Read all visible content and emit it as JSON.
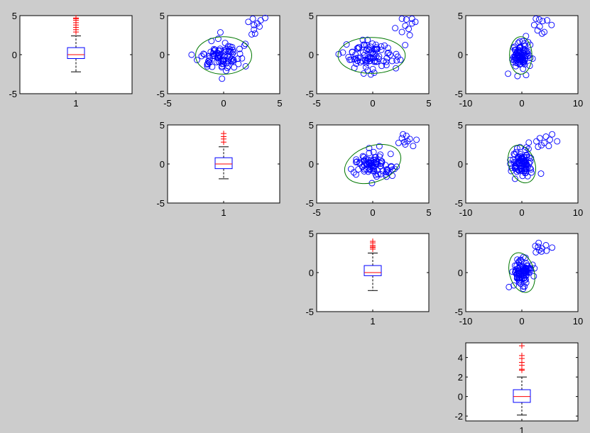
{
  "figure": {
    "background": "#cccccc",
    "axes_background": "#ffffff",
    "colors": {
      "box": "#0000ff",
      "median": "#ff0000",
      "whisker": "#000000",
      "outlier": "#ff0000",
      "point": "#0000ff",
      "ellipse": "#007700"
    }
  },
  "chart_data": [
    {
      "id": "box-1",
      "type": "box",
      "row": 1,
      "col": 1,
      "ylim": [
        -5,
        5
      ],
      "yticks": [
        "5",
        "0",
        "-5"
      ],
      "xticks": [
        "1"
      ],
      "box": {
        "q1": -0.5,
        "median": 0,
        "q3": 0.9,
        "whisker_low": -2.2,
        "whisker_high": 2.4
      },
      "outliers": [
        2.9,
        3.2,
        3.5,
        3.8,
        4.1,
        4.4,
        4.6,
        4.7
      ]
    },
    {
      "id": "scatter-1-2",
      "type": "scatter",
      "row": 1,
      "col": 2,
      "xlim": [
        -5,
        5
      ],
      "ylim": [
        -5,
        5
      ],
      "xticks": [
        "-5",
        "0",
        "5"
      ],
      "yticks": [
        "5",
        "0",
        "-5"
      ],
      "ellipse": {
        "cx": 0,
        "cy": -0.1,
        "rx": 2.5,
        "ry": 2.4,
        "angle_deg": 0
      },
      "outlier_points": [
        [
          2.2,
          4.2
        ],
        [
          2.6,
          4.6
        ],
        [
          2.7,
          3.8
        ],
        [
          3.0,
          4.0
        ],
        [
          2.7,
          3.2
        ],
        [
          2.5,
          2.6
        ],
        [
          2.8,
          2.7
        ],
        [
          3.3,
          4.4
        ],
        [
          3.7,
          4.7
        ],
        [
          3.2,
          3.6
        ]
      ]
    },
    {
      "id": "scatter-1-3",
      "type": "scatter",
      "row": 1,
      "col": 3,
      "xlim": [
        -5,
        5
      ],
      "ylim": [
        -5,
        5
      ],
      "xticks": [
        "-5",
        "0",
        "5"
      ],
      "yticks": [
        "5",
        "0",
        "-5"
      ],
      "ellipse": {
        "cx": -0.1,
        "cy": -0.1,
        "rx": 3.0,
        "ry": 2.3,
        "angle_deg": 0
      },
      "outlier_points": [
        [
          2.6,
          4.6
        ],
        [
          3.0,
          4.5
        ],
        [
          3.5,
          4.6
        ],
        [
          3.8,
          4.2
        ],
        [
          2.9,
          3.7
        ],
        [
          3.2,
          3.3
        ],
        [
          2.0,
          3.4
        ],
        [
          2.6,
          2.9
        ],
        [
          3.3,
          2.5
        ],
        [
          3.5,
          4.0
        ]
      ]
    },
    {
      "id": "scatter-1-4",
      "type": "scatter",
      "row": 1,
      "col": 4,
      "xlim": [
        -10,
        10
      ],
      "ylim": [
        -5,
        5
      ],
      "xticks": [
        "-10",
        "0",
        "10"
      ],
      "yticks": [
        "5",
        "0",
        "-5"
      ],
      "ellipse": {
        "cx": -0.2,
        "cy": -0.1,
        "rx": 2.0,
        "ry": 2.4,
        "angle_deg": 0
      },
      "outlier_points": [
        [
          2.5,
          4.6
        ],
        [
          3.7,
          4.3
        ],
        [
          4.5,
          4.4
        ],
        [
          2.2,
          3.8
        ],
        [
          3.2,
          3.6
        ],
        [
          5.3,
          3.8
        ],
        [
          2.8,
          3.1
        ],
        [
          4.0,
          2.9
        ],
        [
          3.6,
          2.7
        ],
        [
          3.1,
          4.5
        ]
      ]
    },
    {
      "id": "box-2",
      "type": "box",
      "row": 2,
      "col": 2,
      "ylim": [
        -5,
        5
      ],
      "yticks": [
        "5",
        "0",
        "-5"
      ],
      "xticks": [
        "1"
      ],
      "box": {
        "q1": -0.6,
        "median": 0,
        "q3": 0.8,
        "whisker_low": -1.9,
        "whisker_high": 2.2
      },
      "outliers": [
        2.8,
        3.2,
        3.5,
        3.9
      ]
    },
    {
      "id": "scatter-2-3",
      "type": "scatter",
      "row": 2,
      "col": 3,
      "xlim": [
        -5,
        5
      ],
      "ylim": [
        -5,
        5
      ],
      "xticks": [
        "-5",
        "0",
        "5"
      ],
      "yticks": [
        "5",
        "0",
        "-5"
      ],
      "ellipse": {
        "cx": 0,
        "cy": 0,
        "rx": 2.6,
        "ry": 2.3,
        "angle_deg": -20
      },
      "outlier_points": [
        [
          2.7,
          3.8
        ],
        [
          3.3,
          3.2
        ],
        [
          3.9,
          3.1
        ],
        [
          2.3,
          2.7
        ],
        [
          2.9,
          2.5
        ],
        [
          3.6,
          2.3
        ],
        [
          3.1,
          2.9
        ],
        [
          2.6,
          3.3
        ],
        [
          3.0,
          3.6
        ],
        [
          2.8,
          2.8
        ]
      ]
    },
    {
      "id": "scatter-2-4",
      "type": "scatter",
      "row": 2,
      "col": 4,
      "xlim": [
        -10,
        10
      ],
      "ylim": [
        -5,
        5
      ],
      "xticks": [
        "-10",
        "0",
        "10"
      ],
      "yticks": [
        "5",
        "0",
        "-5"
      ],
      "ellipse": {
        "cx": 0,
        "cy": 0,
        "rx": 2.3,
        "ry": 2.5,
        "angle_deg": -20
      },
      "outlier_points": [
        [
          3.2,
          3.3
        ],
        [
          4.3,
          3.5
        ],
        [
          5.4,
          3.8
        ],
        [
          2.6,
          2.9
        ],
        [
          4.0,
          2.7
        ],
        [
          6.3,
          2.9
        ],
        [
          3.5,
          2.4
        ],
        [
          4.8,
          2.3
        ],
        [
          2.9,
          2.2
        ],
        [
          5.0,
          3.1
        ]
      ]
    },
    {
      "id": "box-3",
      "type": "box",
      "row": 3,
      "col": 3,
      "ylim": [
        -5,
        5
      ],
      "yticks": [
        "5",
        "0",
        "-5"
      ],
      "xticks": [
        "1"
      ],
      "box": {
        "q1": -0.4,
        "median": 0,
        "q3": 0.9,
        "whisker_low": -2.3,
        "whisker_high": 2.5
      },
      "outliers": [
        3.0,
        3.2,
        3.3,
        3.5,
        3.8,
        4.0
      ]
    },
    {
      "id": "scatter-3-4",
      "type": "scatter",
      "row": 3,
      "col": 4,
      "xlim": [
        -10,
        10
      ],
      "ylim": [
        -5,
        5
      ],
      "xticks": [
        "-10",
        "0",
        "10"
      ],
      "yticks": [
        "5",
        "0",
        "-5"
      ],
      "ellipse": {
        "cx": 0,
        "cy": 0,
        "rx": 2.2,
        "ry": 2.6,
        "angle_deg": -15
      },
      "outlier_points": [
        [
          2.4,
          3.4
        ],
        [
          3.0,
          3.8
        ],
        [
          4.3,
          3.5
        ],
        [
          5.4,
          3.2
        ],
        [
          3.6,
          3.1
        ],
        [
          2.5,
          2.6
        ],
        [
          3.5,
          2.7
        ],
        [
          4.4,
          2.8
        ],
        [
          3.1,
          2.9
        ],
        [
          2.9,
          3.3
        ]
      ]
    },
    {
      "id": "box-4",
      "type": "box",
      "row": 4,
      "col": 4,
      "ylim": [
        -2.5,
        5.5
      ],
      "yticks": [
        "4",
        "2",
        "0",
        "-2"
      ],
      "ytick_values": [
        4,
        2,
        0,
        -2
      ],
      "xticks": [
        "1"
      ],
      "box": {
        "q1": -0.6,
        "median": 0,
        "q3": 0.7,
        "whisker_low": -1.9,
        "whisker_high": 2.0
      },
      "outliers": [
        2.7,
        2.8,
        3.2,
        3.5,
        3.9,
        4.2,
        5.2
      ]
    }
  ]
}
